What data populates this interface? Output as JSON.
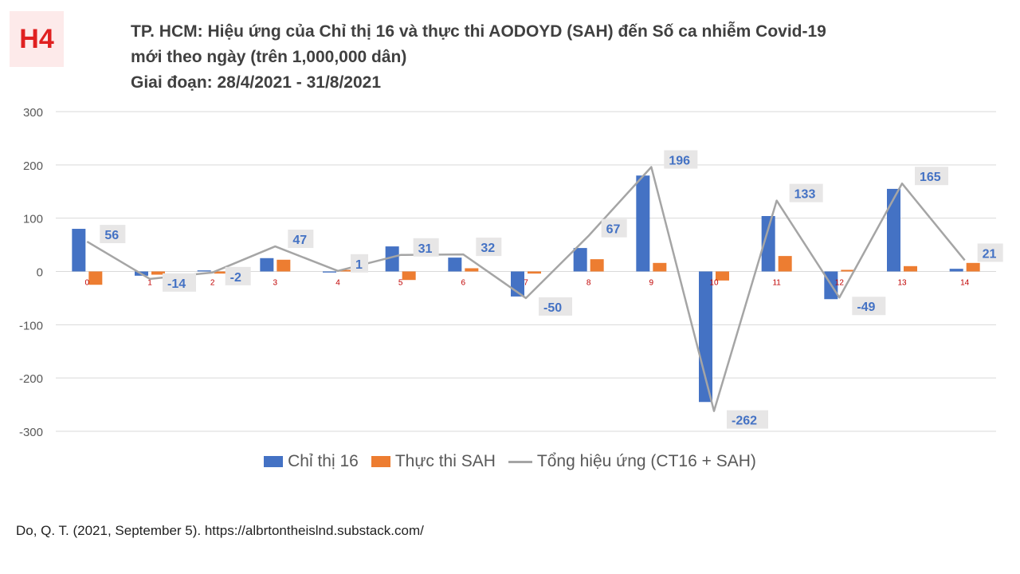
{
  "badge": "H4",
  "title_lines": [
    "TP. HCM: Hiệu ứng của Chỉ thị 16 và thực thi AODOYD (SAH) đến Số ca nhiễm Covid-19",
    "mới theo ngày (trên 1,000,000 dân)",
    "Giai đoạn: 28/4/2021 - 31/8/2021"
  ],
  "source": "Do, Q. T. (2021, September 5). https://albrtontheislnd.substack.com/",
  "colors": {
    "ct16": "#4472c4",
    "sah": "#ed7d31",
    "total": "#a5a5a5",
    "grid": "#d9d9d9",
    "axis_text": "#595959",
    "category_text": "#c00000",
    "label_text": "#4472c4",
    "label_bg": "#e7e6e6"
  },
  "chart_data": {
    "type": "bar",
    "categories": [
      "0",
      "1",
      "2",
      "3",
      "4",
      "5",
      "6",
      "7",
      "8",
      "9",
      "10",
      "11",
      "12",
      "13",
      "14"
    ],
    "series": [
      {
        "name": "Chỉ thị 16",
        "kind": "bar",
        "values": [
          80,
          -8,
          2,
          25,
          -2,
          47,
          26,
          -47,
          44,
          180,
          -245,
          104,
          -52,
          155,
          5
        ]
      },
      {
        "name": "Thực thi SAH",
        "kind": "bar",
        "values": [
          -25,
          -6,
          -4,
          22,
          3,
          -16,
          6,
          -4,
          23,
          16,
          -17,
          29,
          3,
          10,
          16
        ]
      },
      {
        "name": "Tổng hiệu ứng (CT16 + SAH)",
        "kind": "line",
        "values": [
          56,
          -14,
          -2,
          47,
          1,
          31,
          32,
          -50,
          67,
          196,
          -262,
          133,
          -49,
          165,
          21
        ]
      }
    ],
    "data_labels": [
      "56",
      "-14",
      "-2",
      "47",
      "1",
      "31",
      "32",
      "-50",
      "67",
      "196",
      "-262",
      "133",
      "-49",
      "165",
      "21"
    ],
    "yticks": [
      "300",
      "200",
      "100",
      "0",
      "-100",
      "-200",
      "-300"
    ],
    "ylim": [
      -300,
      300
    ],
    "grid": true,
    "legend": "bottom"
  }
}
